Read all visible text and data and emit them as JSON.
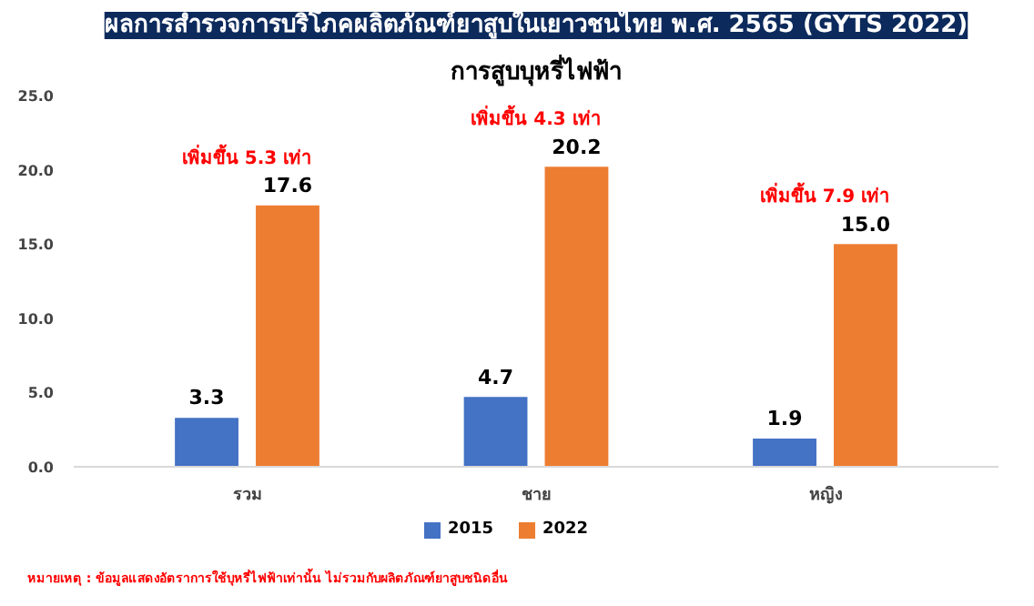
{
  "chart_data": {
    "type": "bar",
    "title": "ผลการสำรวจการบริโภคผลิตภัณฑ์ยาสูบในเยาวชนไทย พ.ศ. 2565 (GYTS 2022)",
    "subtitle": "การสูบบุหรี่ไฟฟ้า",
    "categories": [
      "รวม",
      "ชาย",
      "หญิง"
    ],
    "series": [
      {
        "name": "2015",
        "color": "#4472c4",
        "values": [
          3.3,
          4.7,
          1.9
        ],
        "value_labels": [
          "3.3",
          "4.7",
          "1.9"
        ]
      },
      {
        "name": "2022",
        "color": "#ed7d31",
        "values": [
          17.6,
          20.2,
          15.0
        ],
        "value_labels": [
          "17.6",
          "20.2",
          "15.0"
        ]
      }
    ],
    "ylim": [
      0,
      25
    ],
    "yticks": [
      {
        "value": 0,
        "label": "0.0"
      },
      {
        "value": 5,
        "label": "5.0"
      },
      {
        "value": 10,
        "label": "10.0"
      },
      {
        "value": 15,
        "label": "15.0"
      },
      {
        "value": 20,
        "label": "20.0"
      },
      {
        "value": 25,
        "label": "25.0"
      }
    ],
    "grid": false,
    "legend": "bottom",
    "annotations": [
      "เพิ่มขึ้น 5.3 เท่า",
      "เพิ่มขึ้น 4.3 เท่า",
      "เพิ่มขึ้น 7.9 เท่า",
      "หมายเหตุ : ข้อมูลแสดงอัตราการใช้บุหรี่ไฟฟ้าเท่านั้น ไม่รวมกับผลิตภัณฑ์ยาสูบชนิดอื่น"
    ]
  }
}
